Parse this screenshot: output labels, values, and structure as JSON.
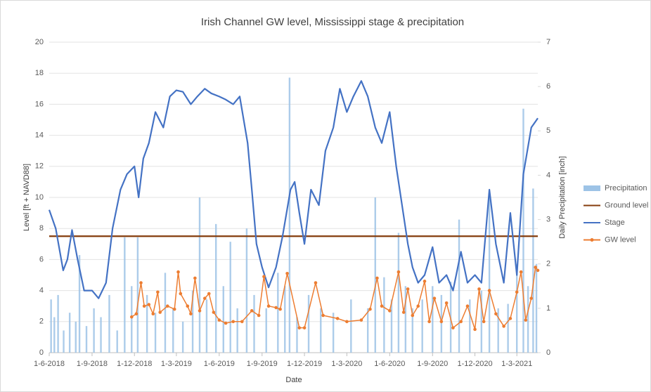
{
  "chart_data": {
    "type": "combo",
    "title": "Irish Channel GW level, Mississippi stage & precipitation",
    "x_label": "Date",
    "y_label": "Level [ft + NAVD88]",
    "y2_label": "Daily Precipitation [inch]",
    "xlim": [
      "2018-06-01",
      "2021-04-15"
    ],
    "xticks": [
      {
        "value": "2018-06-01",
        "label": "1-6-2018"
      },
      {
        "value": "2018-09-01",
        "label": "1-9-2018"
      },
      {
        "value": "2018-12-01",
        "label": "1-12-2018"
      },
      {
        "value": "2019-03-01",
        "label": "1-3-2019"
      },
      {
        "value": "2019-06-01",
        "label": "1-6-2019"
      },
      {
        "value": "2019-09-01",
        "label": "1-9-2019"
      },
      {
        "value": "2019-12-01",
        "label": "1-12-2019"
      },
      {
        "value": "2020-03-01",
        "label": "1-3-2020"
      },
      {
        "value": "2020-06-01",
        "label": "1-6-2020"
      },
      {
        "value": "2020-09-01",
        "label": "1-9-2020"
      },
      {
        "value": "2020-12-01",
        "label": "1-12-2020"
      },
      {
        "value": "2021-03-01",
        "label": "1-3-2021"
      }
    ],
    "ylim": [
      0,
      20
    ],
    "yticks": [
      0,
      2,
      4,
      6,
      8,
      10,
      12,
      14,
      16,
      18,
      20
    ],
    "y2lim": [
      0,
      7
    ],
    "y2ticks": [
      0,
      1,
      2,
      3,
      4,
      5,
      6,
      7
    ],
    "grid": true,
    "legend": "right",
    "series": [
      {
        "name": "Precipitation",
        "type": "bar",
        "axis": "y2",
        "color": "#9dc3e6",
        "x": [
          "2018-06-05",
          "2018-06-12",
          "2018-06-20",
          "2018-07-02",
          "2018-07-15",
          "2018-07-28",
          "2018-08-05",
          "2018-08-20",
          "2018-09-05",
          "2018-09-20",
          "2018-10-08",
          "2018-10-25",
          "2018-11-10",
          "2018-11-25",
          "2018-12-08",
          "2018-12-28",
          "2019-01-15",
          "2019-02-05",
          "2019-02-22",
          "2019-03-15",
          "2019-04-05",
          "2019-04-20",
          "2019-05-05",
          "2019-05-25",
          "2019-06-10",
          "2019-06-25",
          "2019-07-10",
          "2019-07-30",
          "2019-08-15",
          "2019-09-10",
          "2019-10-05",
          "2019-10-20",
          "2019-10-30",
          "2019-11-15",
          "2019-12-10",
          "2020-01-05",
          "2020-02-01",
          "2020-03-10",
          "2020-04-15",
          "2020-05-01",
          "2020-05-20",
          "2020-06-05",
          "2020-06-20",
          "2020-07-05",
          "2020-07-20",
          "2020-08-10",
          "2020-09-01",
          "2020-09-20",
          "2020-10-10",
          "2020-10-28",
          "2020-11-20",
          "2020-12-15",
          "2021-01-01",
          "2021-01-20",
          "2021-02-10",
          "2021-03-01",
          "2021-03-15",
          "2021-03-25",
          "2021-04-05",
          "2021-04-12"
        ],
        "values": [
          1.2,
          0.8,
          1.3,
          0.5,
          0.9,
          0.7,
          2.2,
          0.6,
          1.0,
          0.8,
          1.3,
          0.5,
          2.6,
          1.5,
          2.6,
          1.3,
          0.9,
          1.8,
          1.0,
          0.7,
          1.4,
          3.5,
          1.2,
          2.9,
          1.5,
          2.5,
          1.0,
          2.8,
          1.3,
          1.0,
          1.8,
          1.5,
          6.2,
          0.8,
          1.3,
          1.0,
          0.9,
          1.2,
          1.0,
          3.5,
          1.7,
          1.2,
          2.7,
          1.5,
          1.0,
          1.2,
          1.5,
          1.3,
          1.6,
          3.0,
          1.2,
          1.4,
          3.6,
          1.0,
          1.1,
          2.0,
          5.5,
          1.5,
          3.7,
          2.0
        ]
      },
      {
        "name": "Ground level",
        "type": "line",
        "color": "#843c0c",
        "x": [
          "2018-06-01",
          "2021-04-15"
        ],
        "values": [
          7.5,
          7.5
        ]
      },
      {
        "name": "Stage",
        "type": "line",
        "color": "#4472c4",
        "x": [
          "2018-06-01",
          "2018-06-15",
          "2018-07-01",
          "2018-07-10",
          "2018-07-20",
          "2018-08-01",
          "2018-08-15",
          "2018-09-01",
          "2018-09-15",
          "2018-10-01",
          "2018-10-15",
          "2018-11-01",
          "2018-11-15",
          "2018-12-01",
          "2018-12-10",
          "2018-12-20",
          "2019-01-01",
          "2019-01-15",
          "2019-02-01",
          "2019-02-15",
          "2019-03-01",
          "2019-03-15",
          "2019-04-01",
          "2019-04-15",
          "2019-05-01",
          "2019-05-15",
          "2019-06-01",
          "2019-06-15",
          "2019-07-01",
          "2019-07-15",
          "2019-08-01",
          "2019-08-10",
          "2019-08-20",
          "2019-09-01",
          "2019-09-15",
          "2019-10-01",
          "2019-10-15",
          "2019-11-01",
          "2019-11-10",
          "2019-11-20",
          "2019-12-01",
          "2019-12-15",
          "2020-01-01",
          "2020-01-15",
          "2020-02-01",
          "2020-02-15",
          "2020-03-01",
          "2020-03-15",
          "2020-04-01",
          "2020-04-15",
          "2020-05-01",
          "2020-05-15",
          "2020-06-01",
          "2020-06-15",
          "2020-07-01",
          "2020-07-10",
          "2020-07-20",
          "2020-08-01",
          "2020-08-15",
          "2020-09-01",
          "2020-09-15",
          "2020-10-01",
          "2020-10-15",
          "2020-11-01",
          "2020-11-15",
          "2020-12-01",
          "2020-12-15",
          "2021-01-01",
          "2021-01-15",
          "2021-02-01",
          "2021-02-15",
          "2021-03-01",
          "2021-03-15",
          "2021-04-01",
          "2021-04-15"
        ],
        "values": [
          9.2,
          8.0,
          5.3,
          6.0,
          7.9,
          6.0,
          4.0,
          4.0,
          3.5,
          4.5,
          8.0,
          10.5,
          11.5,
          12.0,
          10.0,
          12.5,
          13.5,
          15.5,
          14.5,
          16.5,
          16.9,
          16.8,
          16.0,
          16.5,
          17.0,
          16.7,
          16.5,
          16.3,
          16.0,
          16.5,
          13.5,
          10.5,
          7.0,
          5.5,
          4.2,
          5.5,
          7.5,
          10.5,
          11.0,
          9.0,
          7.0,
          10.5,
          9.5,
          13.0,
          14.5,
          17.0,
          15.5,
          16.5,
          17.5,
          16.5,
          14.5,
          13.5,
          15.5,
          12.0,
          8.8,
          7.0,
          5.5,
          4.5,
          5.0,
          6.8,
          4.5,
          5.0,
          4.0,
          6.5,
          4.5,
          5.0,
          4.5,
          10.5,
          7.0,
          4.5,
          9.0,
          5.0,
          11.5,
          14.5,
          15.1
        ]
      },
      {
        "name": "GW level",
        "type": "line",
        "markers": true,
        "color": "#ed7d31",
        "x": [
          "2018-11-25",
          "2018-12-05",
          "2018-12-15",
          "2018-12-22",
          "2019-01-01",
          "2019-01-10",
          "2019-01-20",
          "2019-01-25",
          "2019-02-10",
          "2019-02-25",
          "2019-03-05",
          "2019-03-10",
          "2019-03-25",
          "2019-04-01",
          "2019-04-10",
          "2019-04-20",
          "2019-05-01",
          "2019-05-10",
          "2019-05-20",
          "2019-06-01",
          "2019-06-15",
          "2019-07-01",
          "2019-07-20",
          "2019-08-10",
          "2019-08-25",
          "2019-09-05",
          "2019-09-15",
          "2019-10-01",
          "2019-10-10",
          "2019-10-25",
          "2019-11-20",
          "2019-12-01",
          "2019-12-25",
          "2020-01-10",
          "2020-02-10",
          "2020-03-01",
          "2020-04-01",
          "2020-04-20",
          "2020-05-05",
          "2020-05-15",
          "2020-06-01",
          "2020-06-20",
          "2020-07-01",
          "2020-07-10",
          "2020-07-20",
          "2020-08-01",
          "2020-08-15",
          "2020-08-25",
          "2020-09-05",
          "2020-09-20",
          "2020-10-01",
          "2020-10-15",
          "2020-11-01",
          "2020-11-15",
          "2020-12-01",
          "2020-12-10",
          "2020-12-20",
          "2021-01-01",
          "2021-01-15",
          "2021-02-01",
          "2021-02-15",
          "2021-03-01",
          "2021-03-10",
          "2021-03-20",
          "2021-04-01",
          "2021-04-10",
          "2021-04-15"
        ],
        "values": [
          2.3,
          2.5,
          4.5,
          3.0,
          3.1,
          2.5,
          3.9,
          2.6,
          3.0,
          2.8,
          5.2,
          3.8,
          3.0,
          2.5,
          4.8,
          2.7,
          3.5,
          3.8,
          2.6,
          2.1,
          1.9,
          2.0,
          2.0,
          2.7,
          2.4,
          4.9,
          3.0,
          2.9,
          2.8,
          5.1,
          1.6,
          1.6,
          4.5,
          2.4,
          2.2,
          2.0,
          2.1,
          2.8,
          4.8,
          3.0,
          2.7,
          5.2,
          2.6,
          4.1,
          2.4,
          3.0,
          4.6,
          2.0,
          3.5,
          2.0,
          3.2,
          1.6,
          2.0,
          3.0,
          1.5,
          4.1,
          2.0,
          4.0,
          2.5,
          1.7,
          2.2,
          3.9,
          5.2,
          2.1,
          3.5,
          5.5,
          5.3
        ]
      }
    ]
  }
}
